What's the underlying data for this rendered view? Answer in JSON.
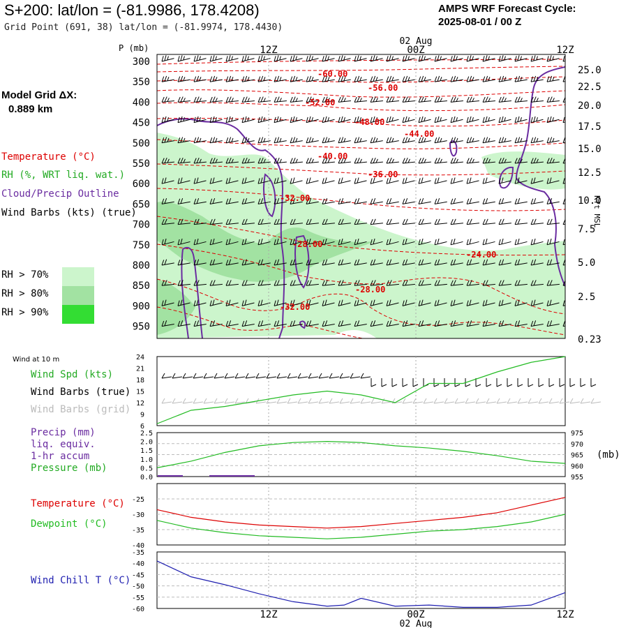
{
  "header": {
    "title": "S+200:  lat/lon = (-81.9986, 178.4208)",
    "subtitle": "Grid Point (691, 38) lat/lon = (-81.9974, 178.4430)",
    "cycle_line1": "AMPS WRF Forecast Cycle:",
    "cycle_line2": "2025-08-01 / 00  Z",
    "grid_label": "Model Grid ΔX:",
    "grid_value": "0.889 km"
  },
  "colors": {
    "temperature": "#dd0000",
    "rh": "#22aa22",
    "cloud": "#6a2ca0",
    "barb": "#000000",
    "barb_grid": "#bbbbbb",
    "dewpoint": "#22bb22",
    "wind_chill": "#1f1fb0",
    "rh70": "#ccf5cc",
    "rh80": "#a2e2a2",
    "rh90": "#33dd33"
  },
  "legend_upper": {
    "temperature": "Temperature (°C)",
    "rh": "RH (%, WRT liq. wat.)",
    "cloud": "Cloud/Precip Outline",
    "barbs": "Wind Barbs (kts) (true)",
    "rh70": "RH > 70%",
    "rh80": "RH > 80%",
    "rh90": "RH > 90%"
  },
  "time_axis": {
    "top_labels": [
      "12Z",
      "00Z",
      "12Z"
    ],
    "date_label": "02 Aug",
    "bottom_labels": [
      "12Z",
      "00Z",
      "12Z"
    ]
  },
  "chart_data": [
    {
      "type": "area",
      "name": "cross-section",
      "ylabel_left": "P (mb)",
      "ylabel_right": "Kft MSL",
      "pressure_ticks": [
        300,
        350,
        400,
        450,
        500,
        550,
        600,
        650,
        700,
        750,
        800,
        850,
        900,
        950
      ],
      "height_ticks": [
        "25.0",
        "22.5",
        "20.0",
        "17.5",
        "15.0",
        "12.5",
        "10.0",
        "7.5",
        "5.0",
        "2.5",
        "0.23"
      ],
      "isotherm_labels": [
        "-60.00",
        "-56.00",
        "-52.00",
        "-48.00",
        "-44.00",
        "-40.00",
        "-36.00",
        "-32.00",
        "-28.00",
        "-24.00",
        "-28.00",
        "-32.00"
      ]
    },
    {
      "type": "line",
      "name": "wind",
      "panel_label": "Wind at 10 m",
      "legend": [
        "Wind Spd (kts)",
        "Wind Barbs (true)",
        "Wind Barbs (grid)"
      ],
      "y_ticks": [
        6,
        9,
        12,
        15,
        18,
        21,
        24
      ],
      "ylim": [
        6,
        24
      ],
      "x": [
        0,
        4,
        8,
        12,
        16,
        20,
        24,
        28,
        32,
        36,
        40,
        44,
        48
      ],
      "values": [
        6.5,
        10,
        11,
        12.5,
        14,
        15,
        14,
        12,
        17,
        17,
        20,
        22.5,
        24
      ]
    },
    {
      "type": "line",
      "name": "precip-pressure",
      "legend": [
        "Precip (mm)",
        "liq. equiv.",
        "1-hr accum",
        "Pressure (mb)"
      ],
      "left_ticks": [
        "0.0",
        "0.5",
        "1.0",
        "1.5",
        "2.0",
        "2.5"
      ],
      "right_ticks": [
        "955",
        "960",
        "965",
        "970",
        "975"
      ],
      "right_unit": "(mb)",
      "ylim": [
        955,
        975
      ],
      "x": [
        0,
        4,
        8,
        12,
        16,
        20,
        24,
        28,
        32,
        36,
        40,
        44,
        48
      ],
      "values": [
        959,
        962,
        966,
        969,
        970.5,
        971,
        970.5,
        969,
        968,
        966.5,
        964.5,
        962,
        961
      ]
    },
    {
      "type": "line",
      "name": "temperature",
      "legend": [
        "Temperature (°C)",
        "Dewpoint (°C)"
      ],
      "y_ticks": [
        -40,
        -35,
        -30,
        -25
      ],
      "ylim": [
        -40,
        -20
      ],
      "x": [
        0,
        4,
        8,
        12,
        16,
        20,
        24,
        28,
        32,
        36,
        40,
        44,
        48
      ],
      "series": [
        {
          "name": "Temperature (°C)",
          "values": [
            -28.5,
            -31,
            -32.5,
            -33.5,
            -34,
            -34.5,
            -34,
            -33,
            -32,
            -31,
            -29.5,
            -27,
            -24.5
          ]
        },
        {
          "name": "Dewpoint (°C)",
          "values": [
            -32,
            -34.5,
            -36,
            -37,
            -37.5,
            -38,
            -37.5,
            -36.5,
            -35.5,
            -35,
            -34,
            -32.5,
            -30
          ]
        }
      ]
    },
    {
      "type": "line",
      "name": "wind-chill",
      "legend": [
        "Wind Chill T (°C)"
      ],
      "y_ticks": [
        -60,
        -55,
        -50,
        -45,
        -40,
        -35
      ],
      "ylim": [
        -60,
        -35
      ],
      "x": [
        0,
        2,
        4,
        8,
        12,
        16,
        20,
        22,
        24,
        28,
        32,
        36,
        40,
        44,
        48
      ],
      "values": [
        -39,
        -42.5,
        -46,
        -49.5,
        -53.5,
        -57,
        -59,
        -58.5,
        -55.5,
        -59,
        -58.5,
        -59.5,
        -59.5,
        -58.5,
        -53
      ]
    }
  ]
}
